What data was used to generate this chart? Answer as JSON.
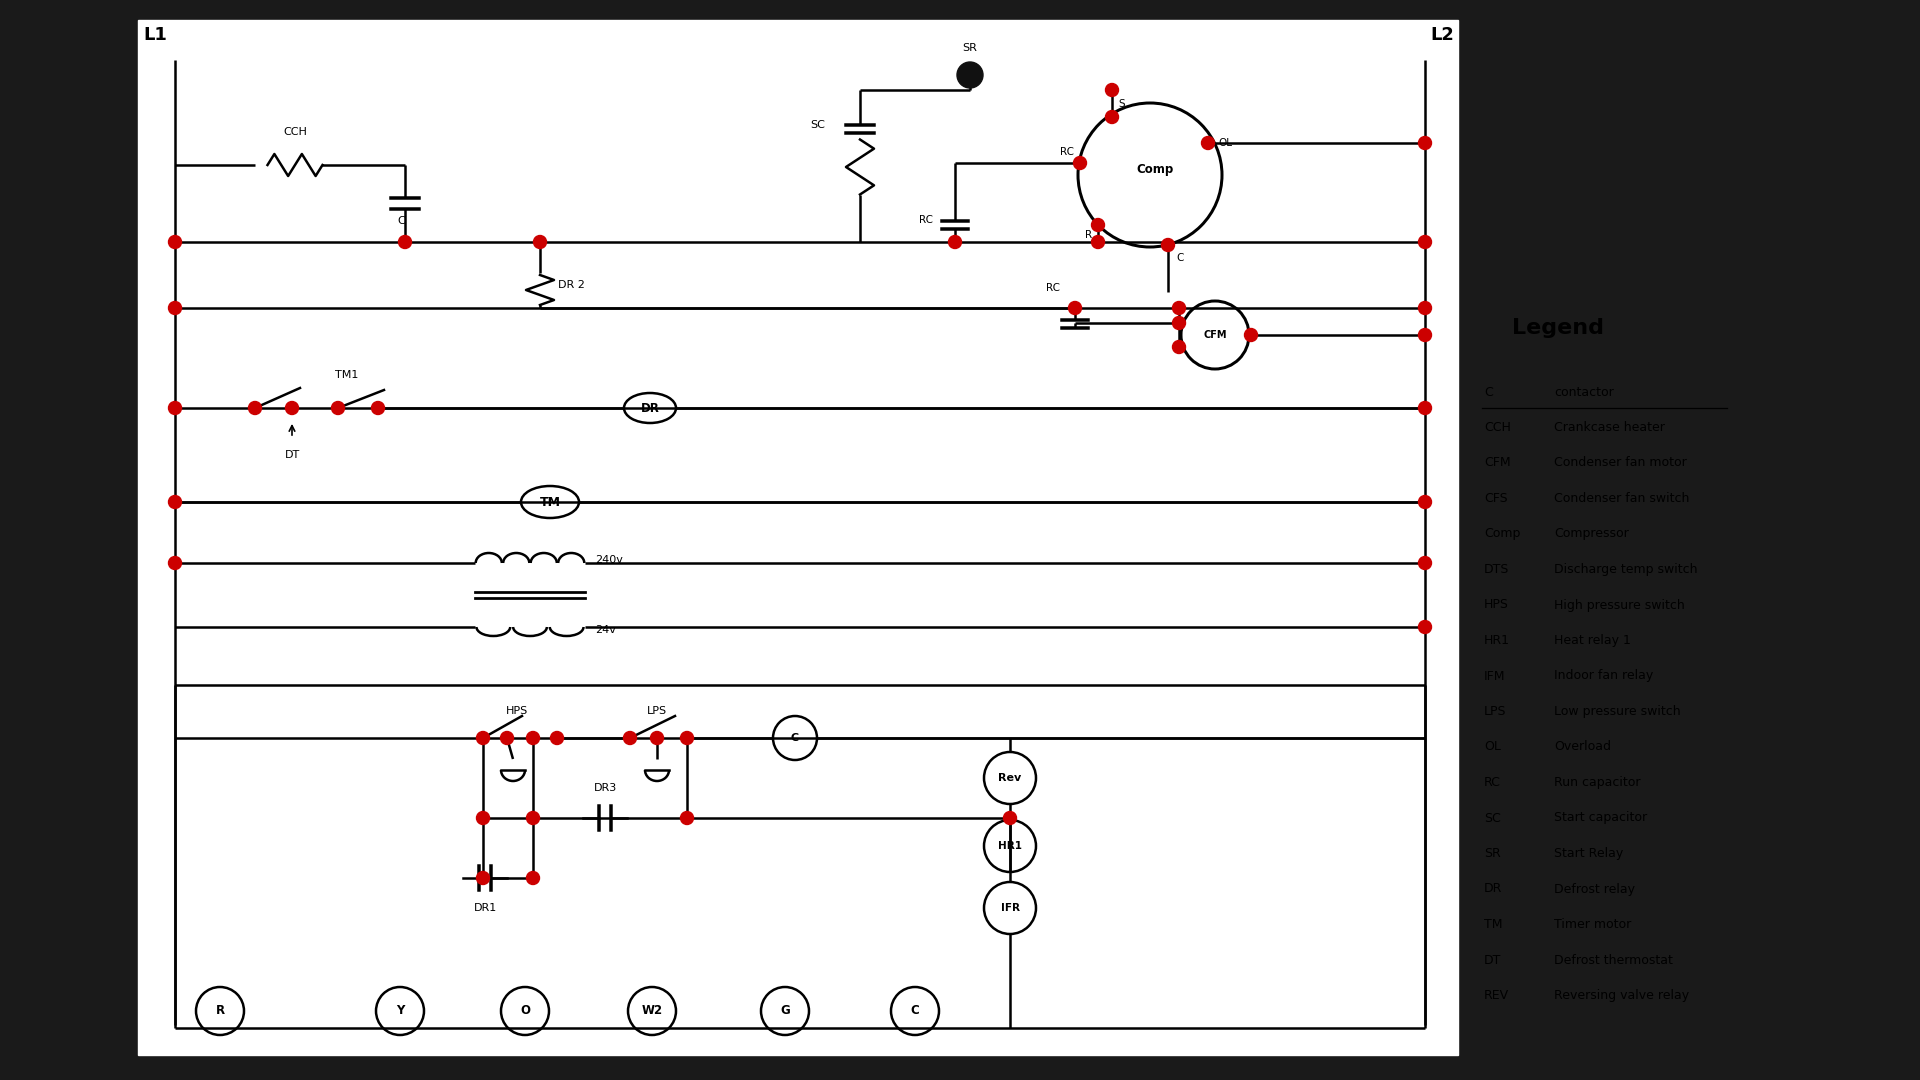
{
  "bg_color": "#1a1a1a",
  "diagram_bg": "#ffffff",
  "line_color": "#000000",
  "dot_color": "#cc0000",
  "title": "Legend",
  "legend_items": [
    [
      "C",
      "contactor"
    ],
    [
      "CCH",
      "Crankcase heater"
    ],
    [
      "CFM",
      "Condenser fan motor"
    ],
    [
      "CFS",
      "Condenser fan switch"
    ],
    [
      "Comp",
      "Compressor"
    ],
    [
      "DTS",
      "Discharge temp switch"
    ],
    [
      "HPS",
      "High pressure switch"
    ],
    [
      "HR1",
      "Heat relay 1"
    ],
    [
      "IFM",
      "Indoor fan relay"
    ],
    [
      "LPS",
      "Low pressure switch"
    ],
    [
      "OL",
      "Overload"
    ],
    [
      "RC",
      "Run capacitor"
    ],
    [
      "SC",
      "Start capacitor"
    ],
    [
      "SR",
      "Start Relay"
    ],
    [
      "DR",
      "Defrost relay"
    ],
    [
      "TM",
      "Timer motor"
    ],
    [
      "DT",
      "Defrost thermostat"
    ],
    [
      "REV",
      "Reversing valve relay"
    ]
  ]
}
